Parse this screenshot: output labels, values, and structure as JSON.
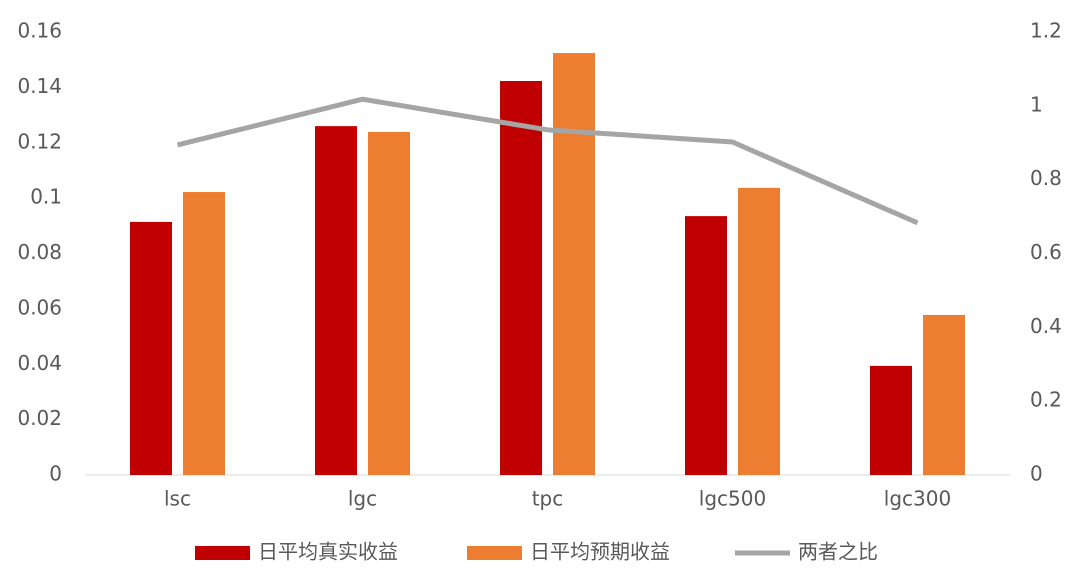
{
  "chart_data": {
    "type": "bar",
    "categories": [
      "lsc",
      "lgc",
      "tpc",
      "lgc500",
      "lgc300"
    ],
    "series": [
      {
        "name": "日平均真实收益",
        "type": "bar",
        "color": "#c00000",
        "values": [
          0.0914,
          0.126,
          0.1423,
          0.0935,
          0.0394
        ]
      },
      {
        "name": "日平均预期收益",
        "type": "bar",
        "color": "#ed7d31",
        "values": [
          0.1022,
          0.1239,
          0.1524,
          0.1037,
          0.0578
        ]
      },
      {
        "name": "两者之比",
        "type": "line",
        "axis": "y2",
        "color": "#a5a5a5",
        "values": [
          0.894,
          1.018,
          0.935,
          0.902,
          0.683
        ]
      }
    ],
    "ylim": [
      0,
      0.16
    ],
    "yticks": [
      0,
      0.02,
      0.04,
      0.06,
      0.08,
      0.1,
      0.12,
      0.14,
      0.16
    ],
    "y2lim": [
      0,
      1.2
    ],
    "y2ticks": [
      0,
      0.2,
      0.4,
      0.6,
      0.8,
      1,
      1.2
    ],
    "legend": "bottom",
    "grid": false
  }
}
